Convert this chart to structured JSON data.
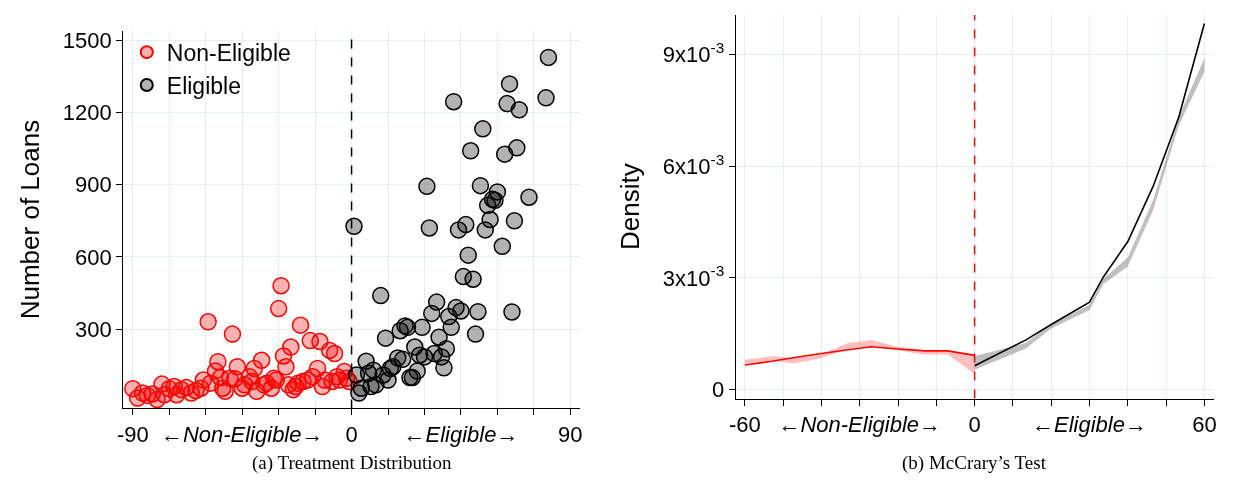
{
  "chart_data": [
    {
      "type": "scatter",
      "title": "(a) Treatment Distribution",
      "ylabel": "Number of Loans",
      "xlim": [
        -94,
        94
      ],
      "ylim": [
        -30,
        1540
      ],
      "xticks": [
        -90,
        {
          "value": -75,
          "label": null
        },
        {
          "value": -60,
          "label": null
        },
        {
          "value": -45,
          "label": "←Non-Eligible→"
        },
        {
          "value": -30,
          "label": null
        },
        {
          "value": -15,
          "label": null
        },
        0,
        {
          "value": 15,
          "label": null
        },
        {
          "value": 30,
          "label": null
        },
        {
          "value": 45,
          "label": "←Eligible→"
        },
        {
          "value": 60,
          "label": null
        },
        {
          "value": 75,
          "label": null
        },
        90
      ],
      "yticks": [
        300,
        600,
        900,
        1200,
        1500
      ],
      "grid": true,
      "legend": "top left",
      "marker": "circle",
      "ref_lines": [
        {
          "axis": "x",
          "value": 0,
          "color": "#000000",
          "line_style": "dashed"
        }
      ],
      "series": [
        {
          "name": "Non-Eligible",
          "color": "#ff0000",
          "x": [
            -90,
            -88,
            -86,
            -84,
            -82,
            -80,
            -78,
            -77,
            -75,
            -73,
            -72,
            -70,
            -68,
            -66,
            -64,
            -62,
            -61,
            -59,
            -58,
            -56,
            -55,
            -54,
            -53,
            -52,
            -50,
            -49,
            -48,
            -47,
            -45,
            -44,
            -42,
            -41,
            -40,
            -39,
            -37,
            -36,
            -35,
            -33,
            -32,
            -31,
            -30,
            -29,
            -28,
            -27,
            -26,
            -25,
            -24,
            -23,
            -22,
            -21,
            -20,
            -18,
            -17,
            -16,
            -14,
            -13,
            -12,
            -11,
            -9,
            -8,
            -7,
            -6,
            -5,
            -3,
            -2,
            -1
          ],
          "values": [
            52,
            13,
            34,
            24,
            30,
            7,
            71,
            27,
            52,
            61,
            27,
            48,
            57,
            34,
            44,
            54,
            88,
            330,
            75,
            125,
            164,
            98,
            54,
            41,
            95,
            279,
            93,
            143,
            54,
            68,
            102,
            82,
            136,
            41,
            170,
            68,
            75,
            54,
            95,
            88,
            385,
            480,
            188,
            143,
            68,
            225,
            48,
            61,
            75,
            316,
            82,
            88,
            252,
            102,
            136,
            248,
            61,
            88,
            211,
            82,
            198,
            102,
            88,
            123,
            95,
            82
          ]
        },
        {
          "name": "Eligible",
          "color": "#000000",
          "x": [
            1,
            2,
            3,
            4,
            6,
            7,
            9,
            8,
            10,
            12,
            13,
            14,
            15,
            16,
            17,
            19,
            20,
            21,
            22,
            23,
            24,
            25,
            26,
            27,
            28,
            29,
            30,
            31,
            32,
            33,
            34,
            35,
            36,
            37,
            38,
            39,
            40,
            41,
            42,
            43,
            44,
            45,
            46,
            47,
            48,
            49,
            50,
            51,
            52,
            53,
            54,
            55,
            56,
            57,
            58,
            59,
            60,
            62,
            63,
            64,
            65,
            66,
            67,
            68,
            69,
            73,
            80,
            81
          ],
          "values": [
            727,
            109,
            34,
            54,
            166,
            116,
            129,
            61,
            68,
            439,
            109,
            262,
            88,
            136,
            143,
            180,
            293,
            174,
            313,
            307,
            98,
            98,
            225,
            125,
            191,
            307,
            184,
            893,
            720,
            365,
            198,
            412,
            266,
            184,
            139,
            218,
            352,
            307,
            1245,
            389,
            712,
            375,
            518,
            734,
            607,
            1041,
            507,
            279,
            372,
            896,
            1132,
            712,
            814,
            755,
            839,
            835,
            870,
            644,
            1027,
            1237,
            1319,
            371,
            750,
            1053,
            1211,
            848,
            1261,
            1429
          ]
        }
      ]
    },
    {
      "type": "line",
      "title": "(b) McCrary’s Test",
      "ylabel": "Density",
      "xlim": [
        -62.4,
        62.4
      ],
      "ylim": [
        -0.00024,
        0.01007
      ],
      "xticks": [
        -60,
        {
          "value": -50,
          "label": null
        },
        {
          "value": -40,
          "label": null
        },
        {
          "value": -30,
          "label": "←Non-Eligible→"
        },
        {
          "value": -20,
          "label": null
        },
        {
          "value": -10,
          "label": null
        },
        0,
        {
          "value": 10,
          "label": null
        },
        {
          "value": 20,
          "label": null
        },
        {
          "value": 30,
          "label": "←Eligible→"
        },
        {
          "value": 40,
          "label": null
        },
        {
          "value": 50,
          "label": null
        },
        60
      ],
      "yticks": [
        0,
        {
          "value": 0.003,
          "label": "3x10$^{-3}$"
        },
        {
          "value": 0.006,
          "label": "6x10$^{-3}$"
        },
        {
          "value": 0.009,
          "label": "9x10$^{-3}$"
        }
      ],
      "grid": true,
      "line_style": "solid",
      "ref_lines": [
        {
          "axis": "x",
          "value": 0,
          "color": "#ff0000",
          "line_style": "dashed"
        }
      ],
      "series": [
        {
          "color": "#ff0000",
          "x": [
            -60,
            -53,
            -47,
            -40,
            -33,
            -27,
            -20,
            -13,
            -7,
            0
          ],
          "values": [
            0.00066,
            0.00076,
            0.00086,
            0.00097,
            0.00107,
            0.00115,
            0.00109,
            0.00104,
            0.00104,
            0.00092
          ],
          "lower": [
            0.00069,
            0.00078,
            0.0007,
            0.00085,
            0.0011,
            0.00116,
            0.00105,
            0.00094,
            0.00094,
            0.00042
          ],
          "upper": [
            0.0008,
            0.0009,
            0.00084,
            0.00095,
            0.00125,
            0.00133,
            0.00115,
            0.00105,
            0.00105,
            0.0009
          ]
        },
        {
          "color": "#000000",
          "x": [
            0,
            13.3,
            20,
            30,
            33.6,
            40,
            46.6,
            53.3,
            60
          ],
          "values": [
            0.00064,
            0.00133,
            0.00175,
            0.00235,
            0.00302,
            0.00398,
            0.00546,
            0.00732,
            0.00984
          ],
          "lower": [
            0.00053,
            0.0011,
            0.00164,
            0.00214,
            0.00284,
            0.00331,
            0.00482,
            0.0071,
            0.00854
          ],
          "upper": [
            0.0009,
            0.00125,
            0.00175,
            0.00228,
            0.00297,
            0.00355,
            0.00509,
            0.00732,
            0.00891
          ]
        }
      ]
    }
  ]
}
